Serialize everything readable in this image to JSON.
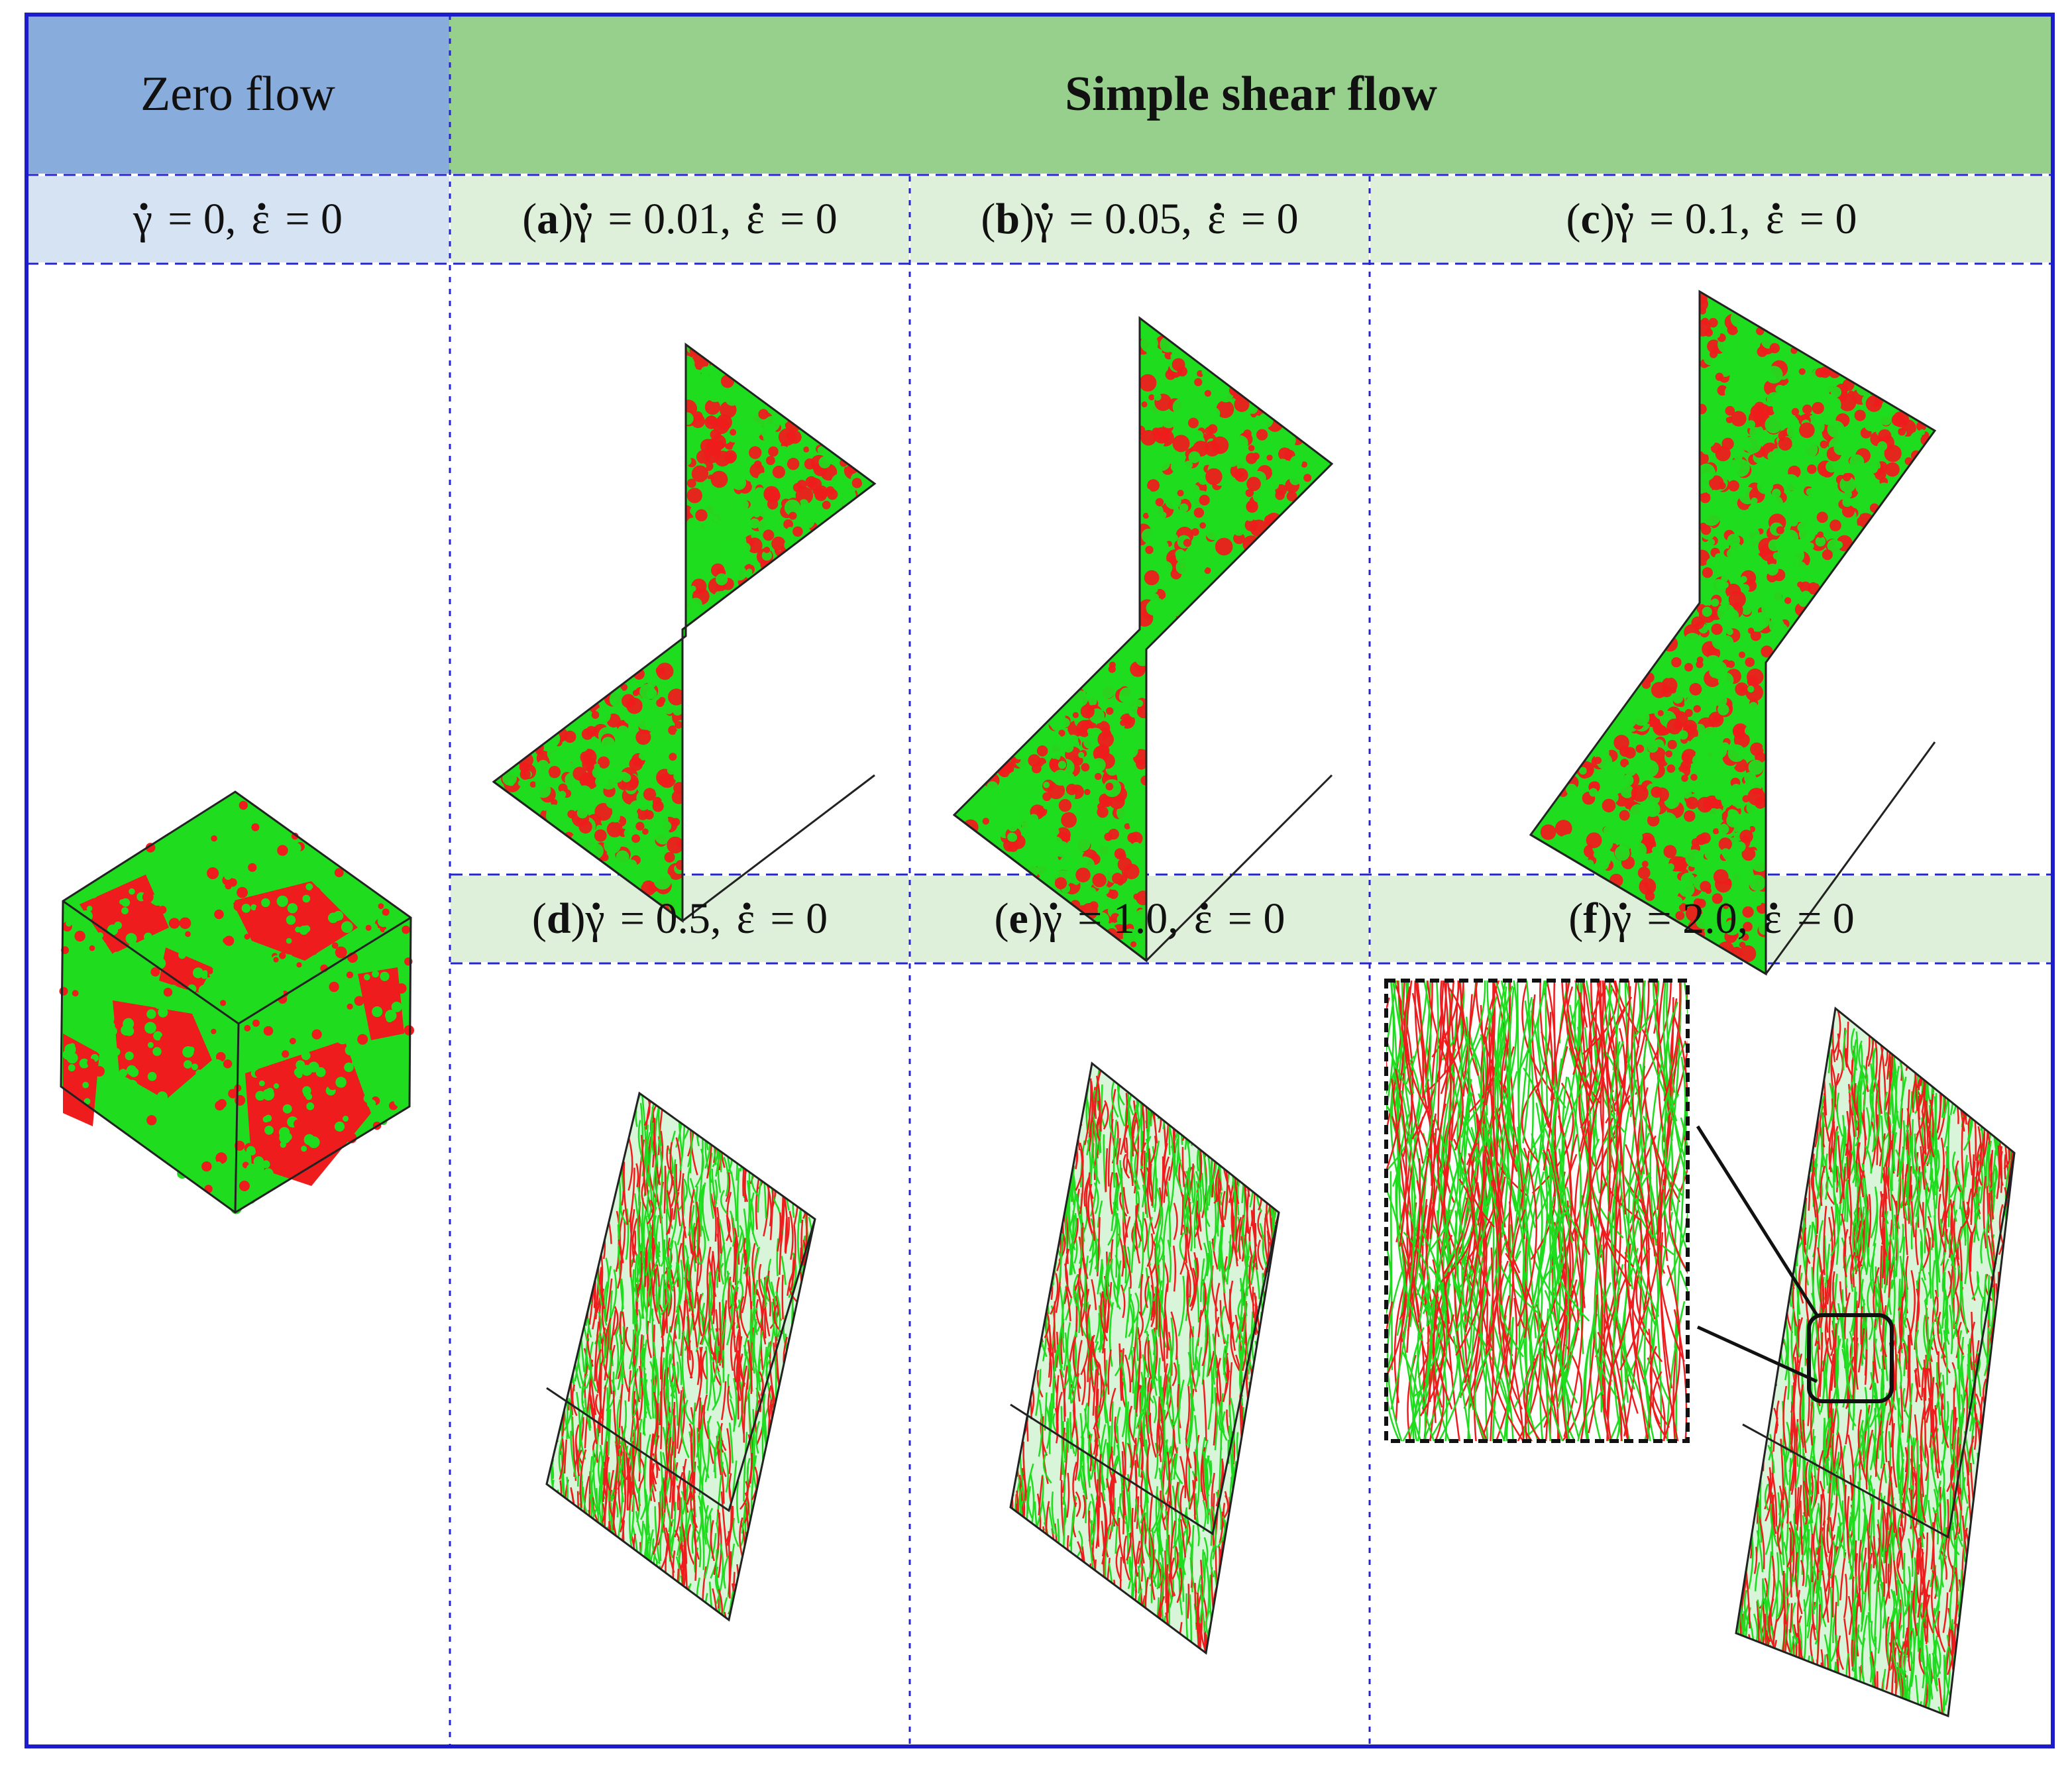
{
  "colors": {
    "frame_border": "#1c1ccc",
    "zero_flow_header_bg": "#88acdc",
    "shear_header_bg": "#96d08c",
    "zero_sub_bg": "#d6e3f3",
    "shear_sub_bg": "#dff0da",
    "bead_green": "#1fdc1f",
    "bead_red": "#ee1c1c"
  },
  "headers": {
    "zero_flow": "Zero flow",
    "simple_shear": "Simple shear flow"
  },
  "zero_panel": {
    "gamma_symbol": "γ",
    "gamma_value": "= 0,",
    "eps_symbol": "ε",
    "eps_value": "= 0"
  },
  "panels": [
    {
      "letter": "a",
      "gamma_symbol": "γ",
      "gamma_value": "= 0.01,",
      "eps_symbol": "ε",
      "eps_value": "= 0"
    },
    {
      "letter": "b",
      "gamma_symbol": "γ",
      "gamma_value": "= 0.05,",
      "eps_symbol": "ε",
      "eps_value": "= 0"
    },
    {
      "letter": "c",
      "gamma_symbol": "γ",
      "gamma_value": "= 0.1,",
      "eps_symbol": "ε",
      "eps_value": "= 0"
    },
    {
      "letter": "d",
      "gamma_symbol": "γ",
      "gamma_value": "= 0.5,",
      "eps_symbol": "ε",
      "eps_value": "= 0"
    },
    {
      "letter": "e",
      "gamma_symbol": "γ",
      "gamma_value": "= 1.0,",
      "eps_symbol": "ε",
      "eps_value": "= 0"
    },
    {
      "letter": "f",
      "gamma_symbol": "γ",
      "gamma_value": "= 2.0,",
      "eps_symbol": "ε",
      "eps_value": "= 0"
    }
  ]
}
